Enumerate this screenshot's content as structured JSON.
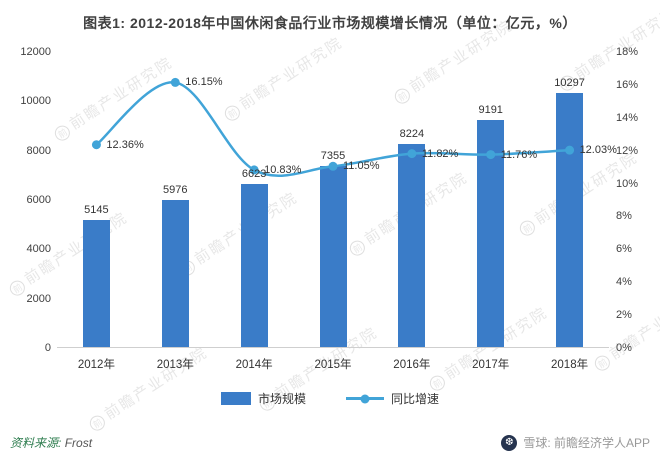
{
  "title": "图表1: 2012-2018年中国休闲食品行业市场规模增长情况（单位：亿元，%）",
  "chart_data": {
    "type": "bar+line",
    "title": "图表1: 2012-2018年中国休闲食品行业市场规模增长情况（单位：亿元，%）",
    "categories": [
      "2012年",
      "2013年",
      "2014年",
      "2015年",
      "2016年",
      "2017年",
      "2018年"
    ],
    "series": [
      {
        "name": "市场规模",
        "type": "bar",
        "axis": "left",
        "color": "#3A7CC8",
        "values": [
          5145,
          5976,
          6623,
          7355,
          8224,
          9191,
          10297
        ],
        "labels": [
          "5145",
          "5976",
          "6623",
          "7355",
          "8224",
          "9191",
          "10297"
        ]
      },
      {
        "name": "同比增速",
        "type": "line",
        "axis": "right",
        "color": "#41A4D8",
        "values": [
          12.36,
          16.15,
          10.83,
          11.05,
          11.82,
          11.76,
          12.03
        ],
        "labels": [
          "12.36%",
          "16.15%",
          "10.83%",
          "11.05%",
          "11.82%",
          "11.76%",
          "12.03%"
        ]
      }
    ],
    "left_axis": {
      "min": 0,
      "max": 12000,
      "step": 2000,
      "ticks": [
        {
          "value": 0,
          "label": "0"
        },
        {
          "value": 2000,
          "label": "2000"
        },
        {
          "value": 4000,
          "label": "4000"
        },
        {
          "value": 6000,
          "label": "6000"
        },
        {
          "value": 8000,
          "label": "8000"
        },
        {
          "value": 10000,
          "label": "10000"
        },
        {
          "value": 12000,
          "label": "12000"
        }
      ]
    },
    "right_axis": {
      "min": 0,
      "max": 18,
      "step": 2,
      "ticks": [
        {
          "value": 0,
          "label": "0%"
        },
        {
          "value": 2,
          "label": "2%"
        },
        {
          "value": 4,
          "label": "4%"
        },
        {
          "value": 6,
          "label": "6%"
        },
        {
          "value": 8,
          "label": "8%"
        },
        {
          "value": 10,
          "label": "10%"
        },
        {
          "value": 12,
          "label": "12%"
        },
        {
          "value": 14,
          "label": "14%"
        },
        {
          "value": 16,
          "label": "16%"
        },
        {
          "value": 18,
          "label": "18%"
        }
      ]
    },
    "legend": [
      "市场规模",
      "同比增速"
    ],
    "legend_position": "bottom",
    "grid": false,
    "xlabel": "",
    "ylabel_left": "亿元",
    "ylabel_right": "%"
  },
  "footer": {
    "source_label": "资料来源:",
    "source_value": "Frost",
    "brand": "雪球: 前瞻经济学人APP"
  },
  "watermark": {
    "badge": "前",
    "text": "前瞻产业研究院"
  }
}
